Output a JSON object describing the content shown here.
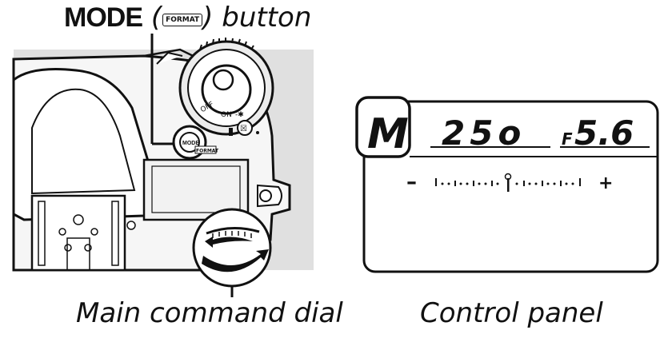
{
  "labels": {
    "mode_word": "MODE",
    "mode_icon": "FORMAT",
    "mode_suffix": "button",
    "main_dial": "Main command dial",
    "control_panel": "Control panel"
  },
  "camera": {
    "mode_button": "MODE",
    "mode_button_sub": "FORMAT",
    "power_off": "OFF",
    "power_on": "ON"
  },
  "panel": {
    "mode": "M",
    "shutter": "25o",
    "f_prefix": "F",
    "aperture": "5.6",
    "minus": "–",
    "plus": "+"
  },
  "icons": [
    "format-icon",
    "exposure-compensation-icon",
    "illumination-icon",
    "rotate-arrows-icon"
  ]
}
